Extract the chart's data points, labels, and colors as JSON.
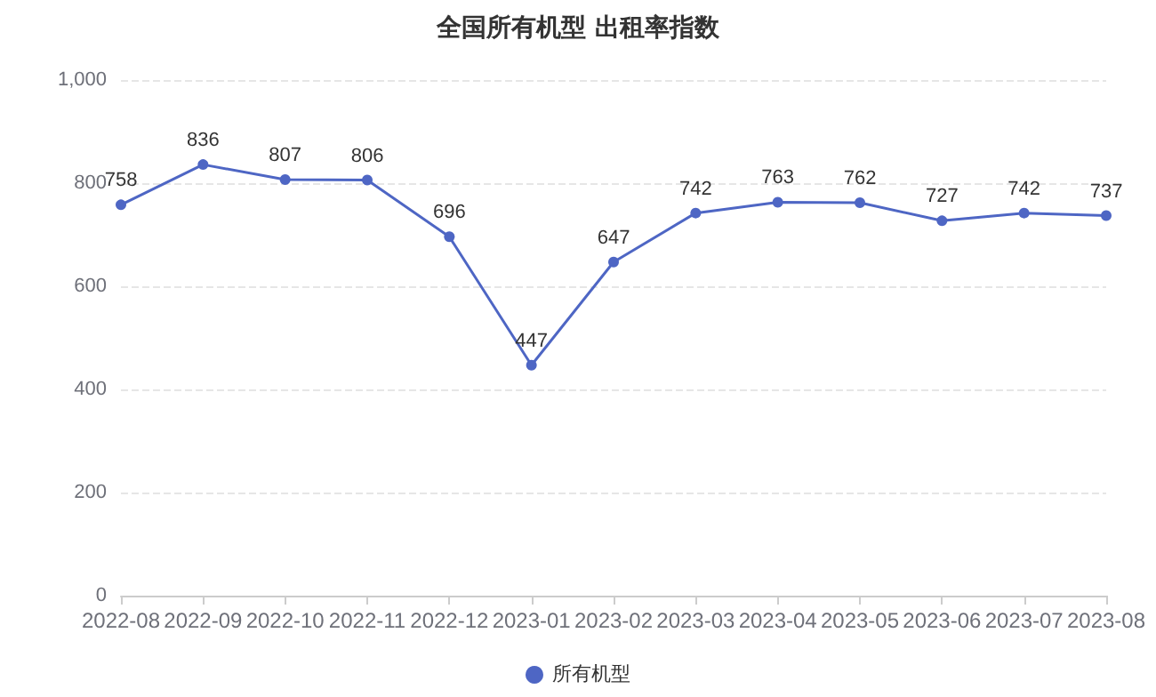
{
  "chart_data": {
    "type": "line",
    "title": "全国所有机型 出租率指数",
    "categories": [
      "2022-08",
      "2022-09",
      "2022-10",
      "2022-11",
      "2022-12",
      "2023-01",
      "2023-02",
      "2023-03",
      "2023-04",
      "2023-05",
      "2023-06",
      "2023-07",
      "2023-08"
    ],
    "series": [
      {
        "name": "所有机型",
        "color": "#4e66c4",
        "values": [
          758,
          836,
          807,
          806,
          696,
          447,
          647,
          742,
          763,
          762,
          727,
          742,
          737
        ]
      }
    ],
    "ylim": [
      0,
      1000
    ],
    "yticks": [
      0,
      200,
      400,
      600,
      800,
      {
        "value": 1000,
        "label": "1,000"
      }
    ],
    "grid": "y",
    "legend": "bottom",
    "marker": "circle",
    "line_style": "solid",
    "data_labels": true
  }
}
